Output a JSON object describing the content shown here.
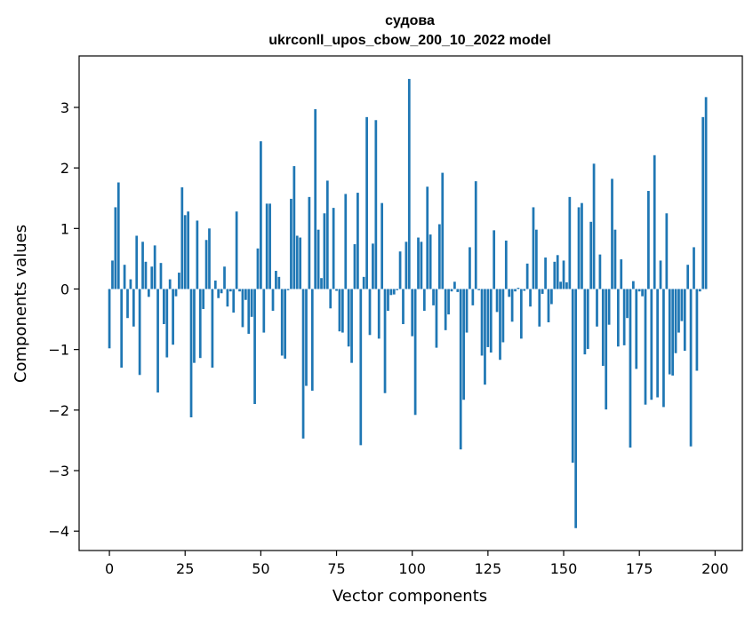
{
  "chart_data": {
    "type": "bar",
    "title_line1": "судова",
    "title_line2": "ukrconll_upos_cbow_200_10_2022 model",
    "xlabel": "Vector components",
    "ylabel": "Components values",
    "xlim": [
      -10,
      209
    ],
    "ylim": [
      -4.32,
      3.85
    ],
    "xticks": [
      0,
      25,
      50,
      75,
      100,
      125,
      150,
      175,
      200
    ],
    "yticks": [
      -4,
      -3,
      -2,
      -1,
      0,
      1,
      2,
      3
    ],
    "ytick_labels": [
      "−4",
      "−3",
      "−2",
      "−1",
      "0",
      "1",
      "2",
      "3"
    ],
    "grid": false,
    "legend": "none",
    "bar_color": "#1f77b4",
    "values": [
      -0.98,
      0.47,
      1.35,
      1.76,
      -1.3,
      0.4,
      -0.48,
      0.16,
      -0.62,
      0.88,
      -1.42,
      0.78,
      0.45,
      -0.13,
      0.37,
      0.72,
      -1.71,
      0.43,
      -0.58,
      -1.13,
      0.16,
      -0.92,
      -0.12,
      0.27,
      1.68,
      1.22,
      1.28,
      -2.12,
      -1.22,
      1.13,
      -1.14,
      -0.33,
      0.81,
      1.0,
      -1.3,
      0.14,
      -0.15,
      -0.07,
      0.37,
      -0.29,
      -0.04,
      -0.39,
      1.28,
      -0.04,
      -0.63,
      -0.18,
      -0.74,
      -0.46,
      -1.9,
      0.67,
      2.44,
      -0.72,
      1.41,
      1.41,
      -0.36,
      0.3,
      0.2,
      -1.1,
      -1.15,
      -0.02,
      1.49,
      2.03,
      0.88,
      0.85,
      -2.47,
      -1.6,
      1.52,
      -1.68,
      2.97,
      0.98,
      0.18,
      1.25,
      1.79,
      -0.32,
      1.34,
      -0.03,
      -0.7,
      -0.72,
      1.57,
      -0.95,
      -1.22,
      0.74,
      1.59,
      -2.58,
      0.2,
      2.84,
      -0.76,
      0.75,
      2.79,
      -0.82,
      1.42,
      -1.72,
      -0.36,
      -0.1,
      -0.09,
      -0.02,
      0.62,
      -0.58,
      0.78,
      3.47,
      -0.78,
      -2.08,
      0.85,
      0.78,
      -0.36,
      1.69,
      0.9,
      -0.27,
      -0.97,
      1.07,
      1.92,
      -0.68,
      -0.42,
      -0.04,
      0.12,
      -0.05,
      -2.65,
      -1.83,
      -0.72,
      0.69,
      -0.27,
      1.78,
      -0.02,
      -1.1,
      -1.58,
      -0.96,
      -1.05,
      0.97,
      -0.38,
      -1.17,
      -0.88,
      0.8,
      -0.13,
      -0.54,
      -0.04,
      0.02,
      -0.82,
      -0.03,
      0.42,
      -0.29,
      1.35,
      0.98,
      -0.62,
      -0.08,
      0.52,
      -0.55,
      -0.25,
      0.45,
      0.56,
      0.12,
      0.47,
      0.11,
      1.52,
      -2.87,
      -3.95,
      1.35,
      1.42,
      -1.08,
      -0.99,
      1.11,
      2.07,
      -0.62,
      0.57,
      -1.27,
      -1.99,
      -0.59,
      1.82,
      0.98,
      -0.95,
      0.49,
      -0.93,
      -0.48,
      -2.62,
      0.13,
      -1.32,
      -0.04,
      -0.12,
      -1.91,
      1.62,
      -1.83,
      2.21,
      -1.79,
      0.47,
      -1.95,
      1.25,
      -1.41,
      -1.43,
      -1.06,
      -0.72,
      -0.53,
      -1.02,
      0.4,
      -2.6,
      0.69,
      -1.35,
      -0.04,
      2.84,
      3.17
    ]
  }
}
